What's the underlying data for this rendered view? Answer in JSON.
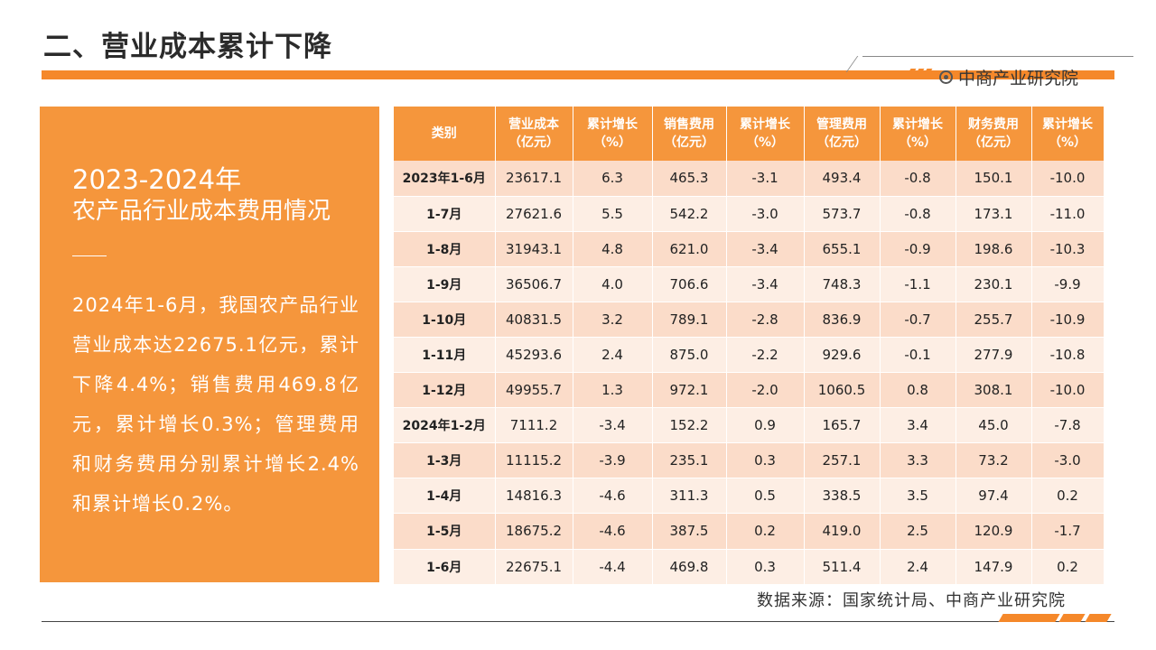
{
  "header": {
    "title": "二、营业成本累计下降",
    "brand": "中商产业研究院",
    "brand_icon": "target-circle-icon",
    "accent_color": "#f5882a"
  },
  "summary": {
    "year_range": "2023-2024年",
    "subtitle": "农产品行业成本费用情况",
    "body": "2024年1-6月，我国农产品行业营业成本达22675.1亿元，累计下降4.4%；销售费用469.8亿元，累计增长0.3%；管理费用和财务费用分别累计增长2.4%和累计增长0.2%。"
  },
  "table": {
    "headers": [
      [
        "类别"
      ],
      [
        "营业成本",
        "（亿元）"
      ],
      [
        "累计增长",
        "（%）"
      ],
      [
        "销售费用",
        "（亿元）"
      ],
      [
        "累计增长",
        "（%）"
      ],
      [
        "管理费用",
        "（亿元）"
      ],
      [
        "累计增长",
        "（%）"
      ],
      [
        "财务费用",
        "（亿元）"
      ],
      [
        "累计增长",
        "（%）"
      ]
    ],
    "rows": [
      [
        "2023年1-6月",
        "23617.1",
        "6.3",
        "465.3",
        "-3.1",
        "493.4",
        "-0.8",
        "150.1",
        "-10.0"
      ],
      [
        "1-7月",
        "27621.6",
        "5.5",
        "542.2",
        "-3.0",
        "573.7",
        "-0.8",
        "173.1",
        "-11.0"
      ],
      [
        "1-8月",
        "31943.1",
        "4.8",
        "621.0",
        "-3.4",
        "655.1",
        "-0.9",
        "198.6",
        "-10.3"
      ],
      [
        "1-9月",
        "36506.7",
        "4.0",
        "706.6",
        "-3.4",
        "748.3",
        "-1.1",
        "230.1",
        "-9.9"
      ],
      [
        "1-10月",
        "40831.5",
        "3.2",
        "789.1",
        "-2.8",
        "836.9",
        "-0.7",
        "255.7",
        "-10.9"
      ],
      [
        "1-11月",
        "45293.6",
        "2.4",
        "875.0",
        "-2.2",
        "929.6",
        "-0.1",
        "277.9",
        "-10.8"
      ],
      [
        "1-12月",
        "49955.7",
        "1.3",
        "972.1",
        "-2.0",
        "1060.5",
        "0.8",
        "308.1",
        "-10.0"
      ],
      [
        "2024年1-2月",
        "7111.2",
        "-3.4",
        "152.2",
        "0.9",
        "165.7",
        "3.4",
        "45.0",
        "-7.8"
      ],
      [
        "1-3月",
        "11115.2",
        "-3.9",
        "235.1",
        "0.3",
        "257.1",
        "3.3",
        "73.2",
        "-3.0"
      ],
      [
        "1-4月",
        "14816.3",
        "-4.6",
        "311.3",
        "0.5",
        "338.5",
        "3.5",
        "97.4",
        "0.2"
      ],
      [
        "1-5月",
        "18675.2",
        "-4.6",
        "387.5",
        "0.2",
        "419.0",
        "2.5",
        "120.9",
        "-1.7"
      ],
      [
        "1-6月",
        "22675.1",
        "-4.4",
        "469.8",
        "0.3",
        "511.4",
        "2.4",
        "147.9",
        "0.2"
      ]
    ]
  },
  "footer": {
    "source": "数据来源：国家统计局、中商产业研究院"
  }
}
